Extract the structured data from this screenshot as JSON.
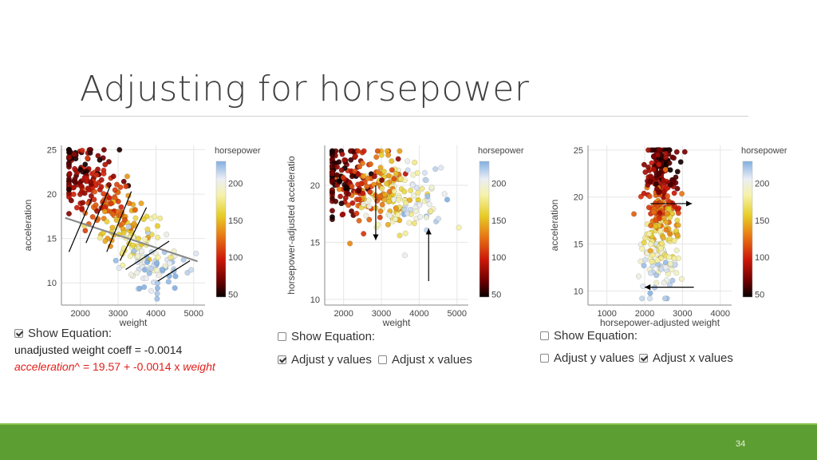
{
  "slide": {
    "title": "Adjusting for horsepower",
    "page_number": "34"
  },
  "panels": {
    "left": {
      "show_equation_label": "Show Equation:",
      "show_equation_checked": true,
      "coeff_text": "unadjusted weight coeff = -0.0014",
      "equation_text": "acceleration^ = 19.57 + -0.0014 x weight"
    },
    "middle": {
      "show_equation_label": "Show Equation:",
      "show_equation_checked": false,
      "adjust_y_label": "Adjust y values",
      "adjust_y_checked": true,
      "adjust_x_label": "Adjust x values",
      "adjust_x_checked": false
    },
    "right": {
      "show_equation_label": "Show Equation:",
      "show_equation_checked": false,
      "adjust_y_label": "Adjust y values",
      "adjust_y_checked": false,
      "adjust_x_label": "Adjust x values",
      "adjust_x_checked": true
    }
  },
  "colors": {
    "footer": "#5d9e32",
    "footer_accent": "#8ac44f",
    "equation_red": "#e0201b"
  },
  "chart_data": [
    {
      "type": "scatter",
      "xlabel": "weight",
      "ylabel": "acceleration",
      "xlim": [
        1500,
        5300
      ],
      "ylim": [
        7.5,
        25.5
      ],
      "xticks": [
        2000,
        3000,
        4000,
        5000
      ],
      "yticks": [
        10,
        15,
        20,
        25
      ],
      "colorbar": {
        "label": "horsepower",
        "ticks": [
          50,
          100,
          150,
          200
        ],
        "range": [
          46,
          230
        ]
      },
      "regression_line": {
        "intercept": 19.57,
        "slope": -0.0014,
        "x_range": [
          1600,
          5100
        ]
      },
      "annotation_segments": [
        {
          "from": [
            1700,
            13.5
          ],
          "to": [
            2300,
            19.5
          ]
        },
        {
          "from": [
            2150,
            14.5
          ],
          "to": [
            2800,
            21
          ]
        },
        {
          "from": [
            2700,
            13.5
          ],
          "to": [
            3350,
            20.3
          ]
        },
        {
          "from": [
            3050,
            12.5
          ],
          "to": [
            3750,
            18.5
          ]
        },
        {
          "from": [
            3200,
            11.5
          ],
          "to": [
            4350,
            14.7
          ]
        },
        {
          "from": [
            4050,
            10.2
          ],
          "to": [
            4900,
            12.5
          ]
        }
      ],
      "seed": 11,
      "mode": "unadjusted"
    },
    {
      "type": "scatter",
      "xlabel": "weight",
      "ylabel": "horsepower-adjusted acceleratio",
      "xlim": [
        1500,
        5300
      ],
      "ylim": [
        9.5,
        23.5
      ],
      "xticks": [
        2000,
        3000,
        4000,
        5000
      ],
      "yticks": [
        10,
        15,
        20
      ],
      "colorbar": {
        "label": "horsepower",
        "ticks": [
          50,
          100,
          150,
          200
        ],
        "range": [
          46,
          230
        ]
      },
      "annotation_arrows": [
        {
          "from": [
            2850,
            20
          ],
          "to": [
            2850,
            15.2
          ]
        },
        {
          "from": [
            4250,
            11.6
          ],
          "to": [
            4250,
            16.2
          ]
        }
      ],
      "seed": 23,
      "mode": "adjust_y"
    },
    {
      "type": "scatter",
      "xlabel": "horsepower-adjusted weight",
      "ylabel": "acceleration",
      "xlim": [
        500,
        4300
      ],
      "ylim": [
        8.5,
        25.5
      ],
      "xticks": [
        1000,
        2000,
        3000,
        4000
      ],
      "yticks": [
        10,
        15,
        20,
        25
      ],
      "colorbar": {
        "label": "horsepower",
        "ticks": [
          50,
          100,
          150,
          200
        ],
        "range": [
          46,
          230
        ]
      },
      "annotation_arrows": [
        {
          "from": [
            2150,
            19.3
          ],
          "to": [
            3250,
            19.3
          ]
        },
        {
          "from": [
            3300,
            10.4
          ],
          "to": [
            2000,
            10.4
          ]
        }
      ],
      "seed": 37,
      "mode": "adjust_x"
    }
  ]
}
